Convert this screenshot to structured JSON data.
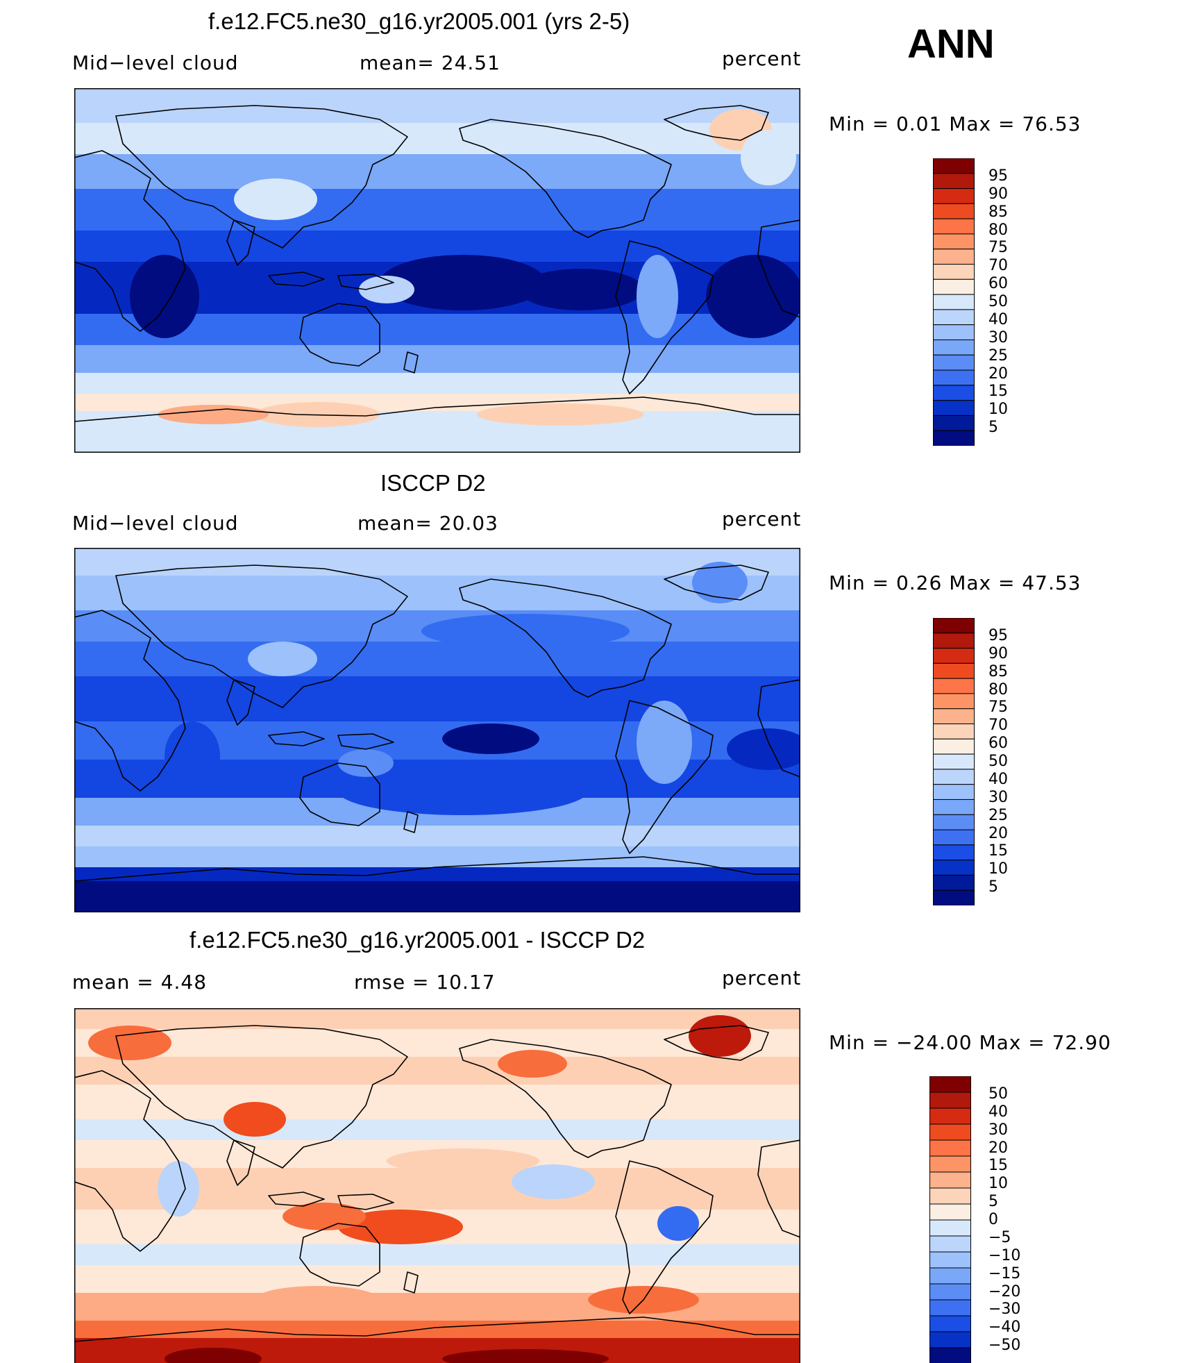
{
  "season": "ANN",
  "colors": {
    "pos": [
      "#fee8d8",
      "#fdd0b4",
      "#fcab84",
      "#fc8a5a",
      "#f86d3c",
      "#f04c1d",
      "#dd2d10",
      "#bd1a0c",
      "#7f0000"
    ],
    "neu": [
      "#d7e8fa"
    ],
    "neg": [
      "#bad4fb",
      "#9cc1fb",
      "#7ca9f8",
      "#5a8df5",
      "#336cf0",
      "#1446e2",
      "#0529c0",
      "#000c80"
    ],
    "coast": "#000000"
  },
  "panels": [
    {
      "title": "f.e12.FC5.ne30_g16.yr2005.001 (yrs 2-5)",
      "left_label": "Mid−level  cloud",
      "center_label": "mean=   24.51",
      "units": "percent",
      "minmax": "Min  =     0.01  Max  =    76.53",
      "levels": [
        "95",
        "90",
        "85",
        "80",
        "75",
        "70",
        "60",
        "50",
        "40",
        "30",
        "25",
        "20",
        "15",
        "10",
        "5"
      ],
      "bar_colors": [
        "#7f0000",
        "#b0190c",
        "#d42b12",
        "#ee4b20",
        "#fc7447",
        "#fd9466",
        "#fcb28c",
        "#fcd4ba",
        "#fbeee2",
        "#d8e8fb",
        "#bcd5fb",
        "#9cc1fb",
        "#7aa8f8",
        "#5b8df5",
        "#3d71f1",
        "#1a4ee4",
        "#0732c7",
        "#001a99",
        "#000c80"
      ],
      "field": "model"
    },
    {
      "title": "ISCCP D2",
      "left_label": "Mid−level  cloud",
      "center_label": "mean=   20.03",
      "units": "percent",
      "minmax": "Min  =     0.26  Max  =    47.53",
      "levels": [
        "95",
        "90",
        "85",
        "80",
        "75",
        "70",
        "60",
        "50",
        "40",
        "30",
        "25",
        "20",
        "15",
        "10",
        "5"
      ],
      "bar_colors": [
        "#7f0000",
        "#b0190c",
        "#d42b12",
        "#ee4b20",
        "#fc7447",
        "#fd9466",
        "#fcb28c",
        "#fcd4ba",
        "#fbeee2",
        "#d8e8fb",
        "#bcd5fb",
        "#9cc1fb",
        "#7aa8f8",
        "#5b8df5",
        "#3d71f1",
        "#1a4ee4",
        "#0732c7",
        "#001a99",
        "#000c80"
      ],
      "field": "obs"
    },
    {
      "title": "f.e12.FC5.ne30_g16.yr2005.001 - ISCCP D2",
      "left_label": "mean  =     4.48",
      "center_label": "rmse  =    10.17",
      "units": "percent",
      "minmax": "Min  =  −24.00  Max  =    72.90",
      "levels": [
        "50",
        "40",
        "30",
        "20",
        "15",
        "10",
        "5",
        "0",
        "−5",
        "−10",
        "−15",
        "−20",
        "−30",
        "−40",
        "−50"
      ],
      "bar_colors": [
        "#7f0000",
        "#b0190c",
        "#d42b12",
        "#ee4b20",
        "#fc7447",
        "#fd9466",
        "#fcb28c",
        "#fcd4ba",
        "#fbeee2",
        "#d8e8fb",
        "#bcd5fb",
        "#9cc1fb",
        "#7aa8f8",
        "#5b8df5",
        "#3d71f1",
        "#1a4ee4",
        "#0732c7",
        "#000c80"
      ],
      "field": "diff"
    }
  ]
}
